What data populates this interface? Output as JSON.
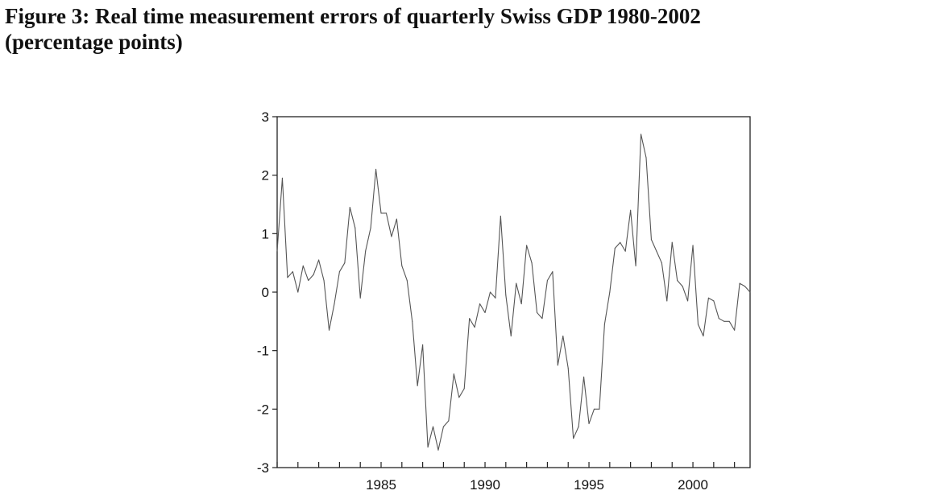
{
  "figure": {
    "title_line1": "Figure 3: Real time measurement errors of  quarterly Swiss GDP 1980-2002",
    "title_line2": "(percentage points)"
  },
  "chart_data": {
    "type": "line",
    "title": "Figure 3: Real time measurement errors of  quarterly Swiss GDP 1980-2002 (percentage points)",
    "xlabel": "",
    "ylabel": "",
    "xlim": [
      1980.0,
      2002.75
    ],
    "ylim": [
      -3,
      3
    ],
    "x_ticks": [
      1985,
      1990,
      1995,
      2000
    ],
    "y_ticks": [
      3,
      2,
      1,
      0,
      -1,
      -2,
      -3
    ],
    "x_tick_labels": [
      "1985",
      "1990",
      "1995",
      "2000"
    ],
    "y_tick_labels": [
      "3",
      "2",
      "1",
      "0",
      "-1",
      "-2",
      "-3"
    ],
    "grid": false,
    "line_color": "#555555",
    "series": [
      {
        "x": [
          1980.0,
          1980.25,
          1980.5,
          1980.75,
          1981.0,
          1981.25,
          1981.5,
          1981.75,
          1982.0,
          1982.25,
          1982.5,
          1982.75,
          1983.0,
          1983.25,
          1983.5,
          1983.75,
          1984.0,
          1984.25,
          1984.5,
          1984.75,
          1985.0,
          1985.25,
          1985.5,
          1985.75,
          1986.0,
          1986.25,
          1986.5,
          1986.75,
          1987.0,
          1987.25,
          1987.5,
          1987.75,
          1988.0,
          1988.25,
          1988.5,
          1988.75,
          1989.0,
          1989.25,
          1989.5,
          1989.75,
          1990.0,
          1990.25,
          1990.5,
          1990.75,
          1991.0,
          1991.25,
          1991.5,
          1991.75,
          1992.0,
          1992.25,
          1992.5,
          1992.75,
          1993.0,
          1993.25,
          1993.5,
          1993.75,
          1994.0,
          1994.25,
          1994.5,
          1994.75,
          1995.0,
          1995.25,
          1995.5,
          1995.75,
          1996.0,
          1996.25,
          1996.5,
          1996.75,
          1997.0,
          1997.25,
          1997.5,
          1997.75,
          1998.0,
          1998.25,
          1998.5,
          1998.75,
          1999.0,
          1999.25,
          1999.5,
          1999.75,
          2000.0,
          2000.25,
          2000.5,
          2000.75,
          2001.0,
          2001.25,
          2001.5,
          2001.75,
          2002.0,
          2002.25,
          2002.5,
          2002.75
        ],
        "values": [
          0.7,
          1.95,
          0.25,
          0.35,
          0.0,
          0.45,
          0.2,
          0.3,
          0.55,
          0.2,
          -0.65,
          -0.2,
          0.35,
          0.5,
          1.45,
          1.1,
          -0.1,
          0.7,
          1.1,
          2.1,
          1.35,
          1.35,
          0.95,
          1.25,
          0.45,
          0.2,
          -0.5,
          -1.6,
          -0.9,
          -2.65,
          -2.3,
          -2.7,
          -2.3,
          -2.2,
          -1.4,
          -1.8,
          -1.65,
          -0.45,
          -0.6,
          -0.2,
          -0.35,
          0.0,
          -0.1,
          1.3,
          -0.05,
          -0.75,
          0.15,
          -0.2,
          0.8,
          0.5,
          -0.35,
          -0.45,
          0.2,
          0.35,
          -1.25,
          -0.75,
          -1.3,
          -2.5,
          -2.3,
          -1.45,
          -2.25,
          -2.0,
          -2.0,
          -0.55,
          0.0,
          0.75,
          0.85,
          0.7,
          1.4,
          0.45,
          2.7,
          2.3,
          0.9,
          0.7,
          0.5,
          -0.15,
          0.85,
          0.2,
          0.1,
          -0.15,
          0.8,
          -0.55,
          -0.75,
          -0.1,
          -0.15,
          -0.45,
          -0.5,
          -0.5,
          -0.65,
          0.15,
          0.1,
          0.0
        ]
      }
    ]
  }
}
